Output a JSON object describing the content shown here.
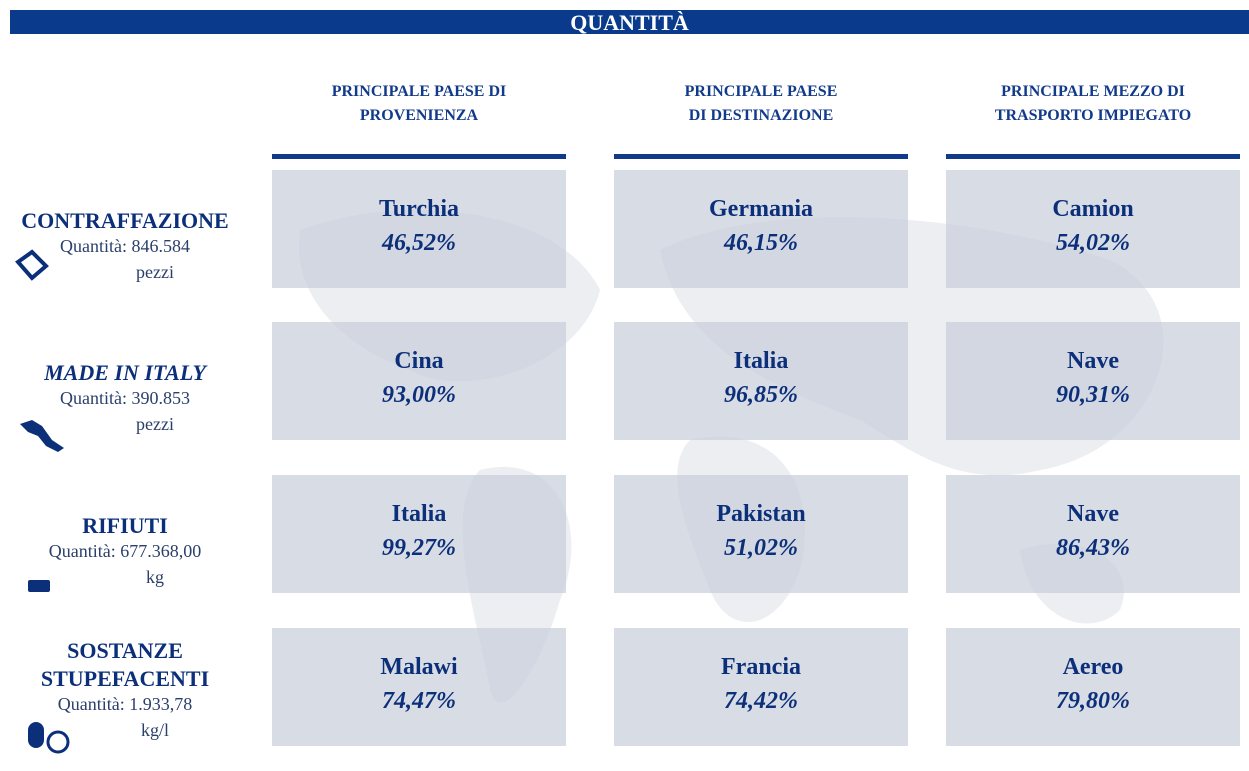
{
  "title": "QUANTITÀ",
  "headers": [
    [
      "PRINCIPALE PAESE DI",
      "PROVENIENZA"
    ],
    [
      "PRINCIPALE PAESE",
      "DI DESTINAZIONE"
    ],
    [
      "PRINCIPALE MEZZO DI",
      "TRASPORTO IMPIEGATO"
    ]
  ],
  "rows": [
    {
      "label": "CONTRAFFAZIONE",
      "quantity": "Quantità: 846.584",
      "unit": "pezzi",
      "cells": [
        [
          "Turchia",
          "46,52%"
        ],
        [
          "Germania",
          "46,15%"
        ],
        [
          "Camion",
          "54,02%"
        ]
      ]
    },
    {
      "label": "MADE IN ITALY",
      "quantity": "Quantità:  390.853",
      "unit": "pezzi",
      "cells": [
        [
          "Cina",
          "93,00%"
        ],
        [
          "Italia",
          "96,85%"
        ],
        [
          "Nave",
          "90,31%"
        ]
      ]
    },
    {
      "label": "RIFIUTI",
      "quantity": "Quantità:  677.368,00",
      "unit": "kg",
      "cells": [
        [
          "Italia",
          "99,27%"
        ],
        [
          "Pakistan",
          "51,02%"
        ],
        [
          "Nave",
          "86,43%"
        ]
      ]
    },
    {
      "label": [
        "SOSTANZE",
        "STUPEFACENTI"
      ],
      "quantity": "Quantità:  1.933,78",
      "unit": "kg/l",
      "cells": [
        [
          "Malawi",
          "74,47%"
        ],
        [
          "Francia",
          "74,42%"
        ],
        [
          "Aereo",
          "79,80%"
        ]
      ]
    }
  ]
}
